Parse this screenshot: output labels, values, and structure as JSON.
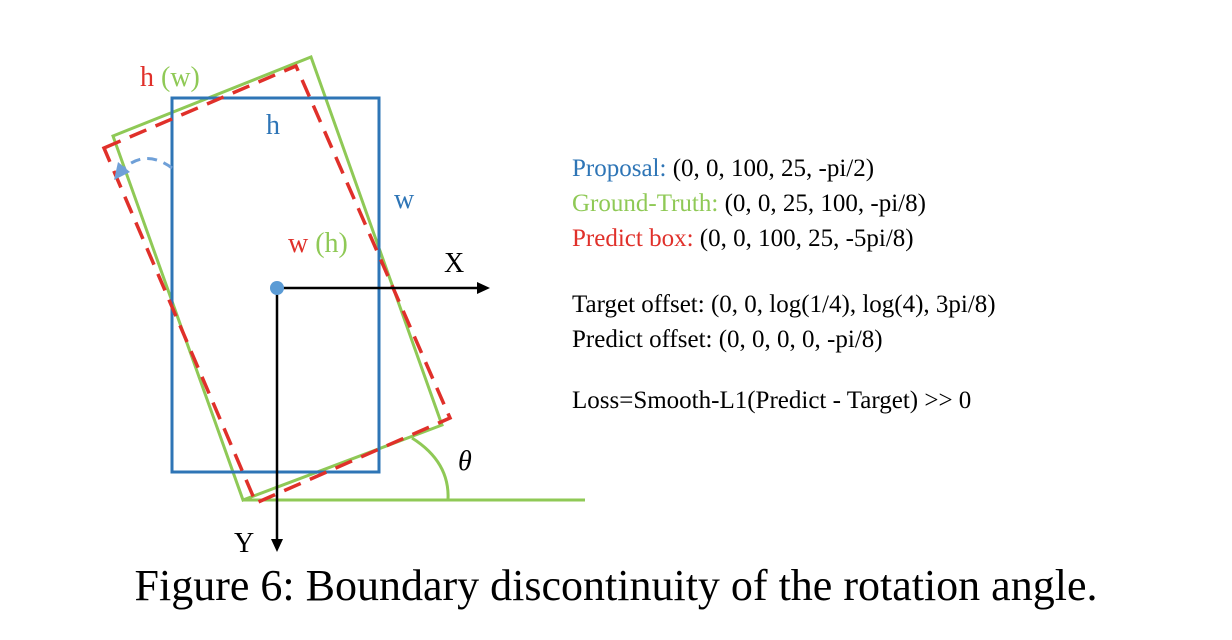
{
  "labels": {
    "top_h": "h",
    "top_w_paren": "(w)",
    "blue_h": "h",
    "blue_w": "w",
    "side_w": "w",
    "side_h_paren": "(h)",
    "x_axis": "X",
    "y_axis": "Y",
    "theta": "θ"
  },
  "legend": {
    "proposal_key": "Proposal:",
    "proposal_val": "(0, 0, 100, 25, -pi/2)",
    "gt_key": "Ground-Truth:",
    "gt_val": "(0, 0, 25, 100, -pi/8)",
    "pred_key": "Predict box:",
    "pred_val": "(0, 0, 100, 25, -5pi/8)",
    "target_offset": "Target offset: (0, 0, log(1/4), log(4), 3pi/8)",
    "predict_offset": "Predict offset: (0, 0, 0, 0, -pi/8)",
    "loss": "Loss=Smooth-L1(Predict - Target) >> 0"
  },
  "caption": "Figure 6: Boundary discontinuity of the rotation angle.",
  "colors": {
    "proposal": "#2E75B6",
    "ground_truth": "#8FC956",
    "predict": "#E0302A",
    "axes": "#000000"
  }
}
